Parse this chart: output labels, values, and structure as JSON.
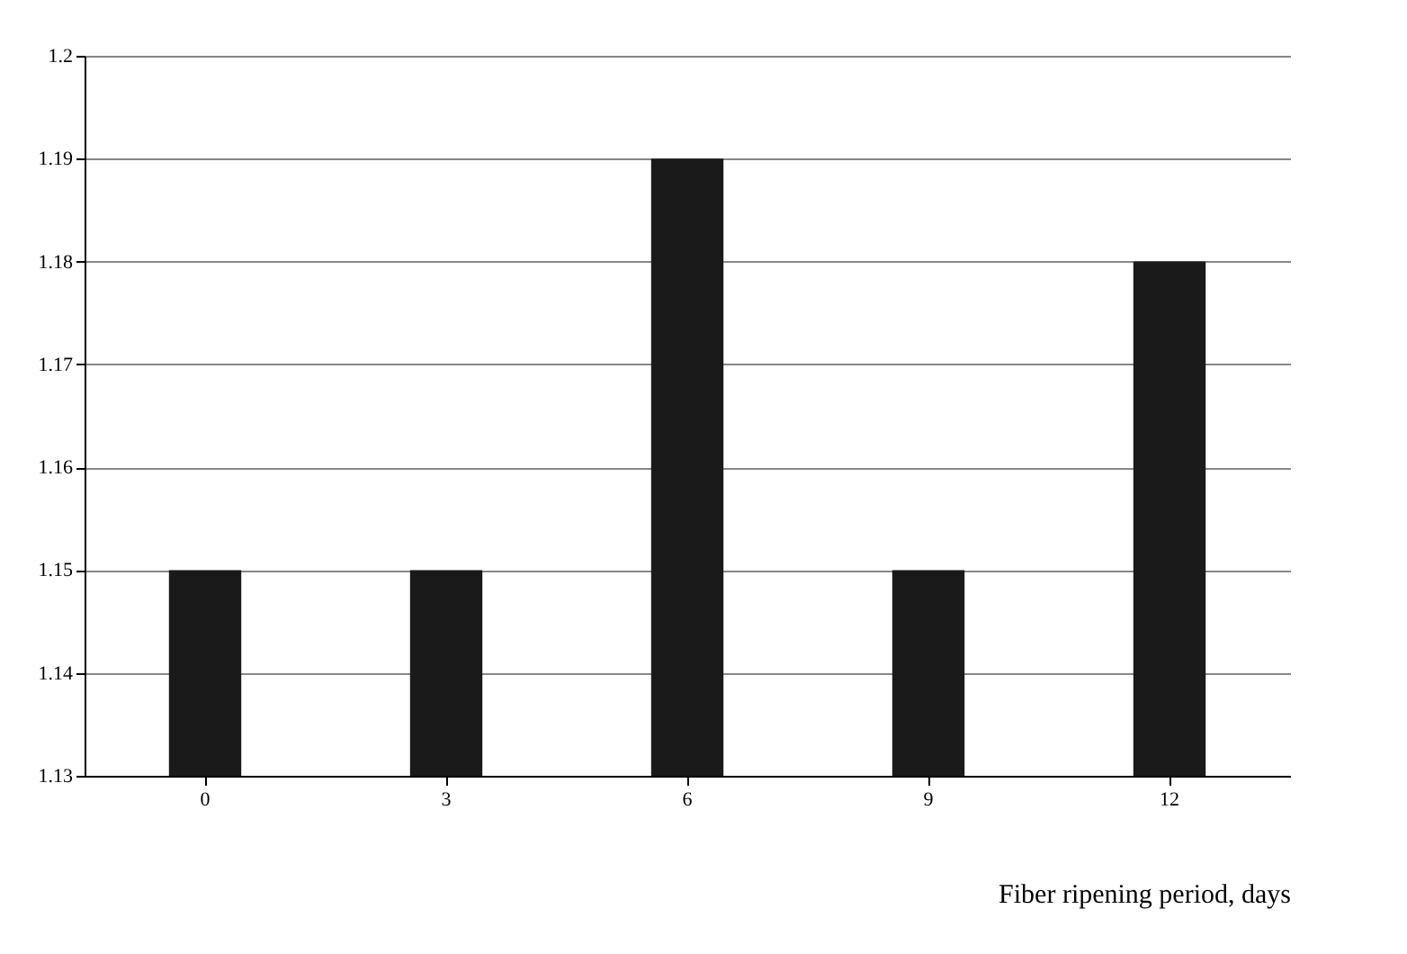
{
  "chart_data": {
    "type": "bar",
    "xlabel": "Fiber ripening period, days",
    "categories": [
      "0",
      "3",
      "6",
      "9",
      "12"
    ],
    "values": [
      1.15,
      1.15,
      1.19,
      1.15,
      1.18
    ],
    "color": "#1a1a1a",
    "ylim": [
      1.13,
      1.2
    ],
    "yticks": [
      1.13,
      1.14,
      1.15,
      1.16,
      1.17,
      1.18,
      1.19,
      1.2
    ],
    "grid": "y"
  }
}
